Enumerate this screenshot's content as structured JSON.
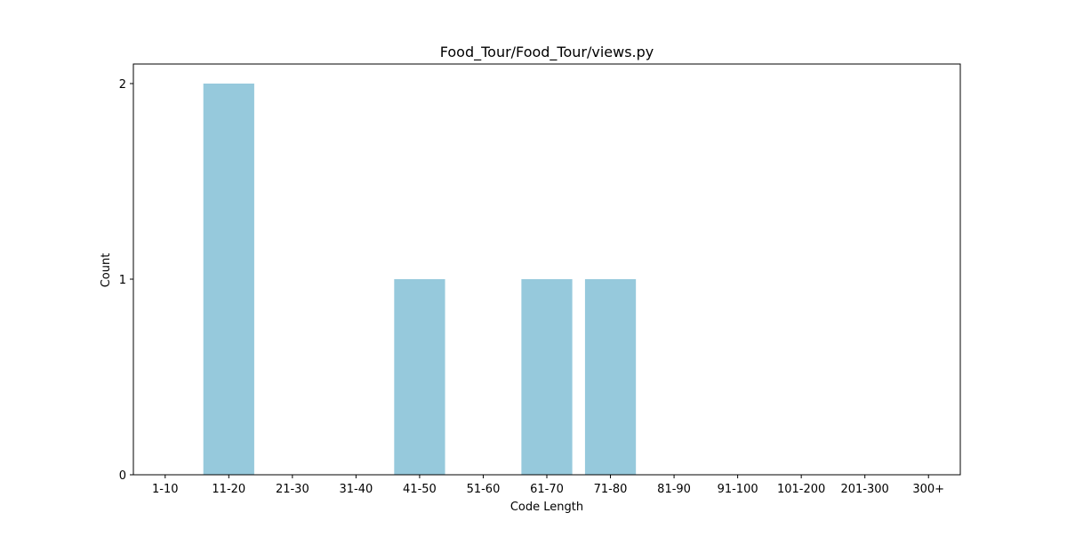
{
  "chart_data": {
    "type": "bar",
    "title": "Food_Tour/Food_Tour/views.py",
    "xlabel": "Code Length",
    "ylabel": "Count",
    "categories": [
      "1-10",
      "11-20",
      "21-30",
      "31-40",
      "41-50",
      "51-60",
      "61-70",
      "71-80",
      "81-90",
      "91-100",
      "101-200",
      "201-300",
      "300+"
    ],
    "values": [
      0,
      2,
      0,
      0,
      1,
      0,
      1,
      1,
      0,
      0,
      0,
      0,
      0
    ],
    "ylim": [
      0,
      2.1
    ],
    "yticks": [
      0,
      1,
      2
    ],
    "grid": false,
    "legend": "none",
    "bar_color": "#96c9dc"
  }
}
